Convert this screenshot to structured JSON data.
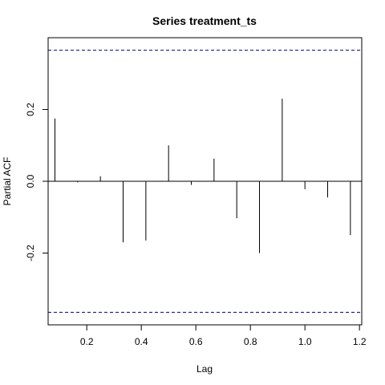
{
  "chart_data": {
    "type": "bar",
    "title": "Series  treatment_ts",
    "xlabel": "Lag",
    "ylabel": "Partial ACF",
    "xlim": [
      0.0583,
      1.2083
    ],
    "ylim": [
      -0.4,
      0.4
    ],
    "x_ticks": [
      0.2,
      0.4,
      0.6,
      0.8,
      1.0,
      1.2
    ],
    "x_tick_labels": [
      "0.2",
      "0.4",
      "0.6",
      "0.8",
      "1.0",
      "1.2"
    ],
    "y_ticks": [
      -0.2,
      0.0,
      0.2
    ],
    "y_tick_labels": [
      "-0.2",
      "0.0",
      "0.2"
    ],
    "lags": [
      0.0833,
      0.1667,
      0.25,
      0.3333,
      0.4167,
      0.5,
      0.5833,
      0.6667,
      0.75,
      0.8333,
      0.9167,
      1.0,
      1.0833,
      1.1667
    ],
    "values": [
      0.175,
      -0.003,
      0.014,
      -0.17,
      -0.165,
      0.1,
      -0.01,
      0.063,
      -0.103,
      -0.2,
      0.23,
      -0.022,
      -0.045,
      -0.15
    ],
    "confidence_bound": 0.365,
    "confidence_line_color": "#00008B",
    "zero_line": true,
    "grid": false
  }
}
